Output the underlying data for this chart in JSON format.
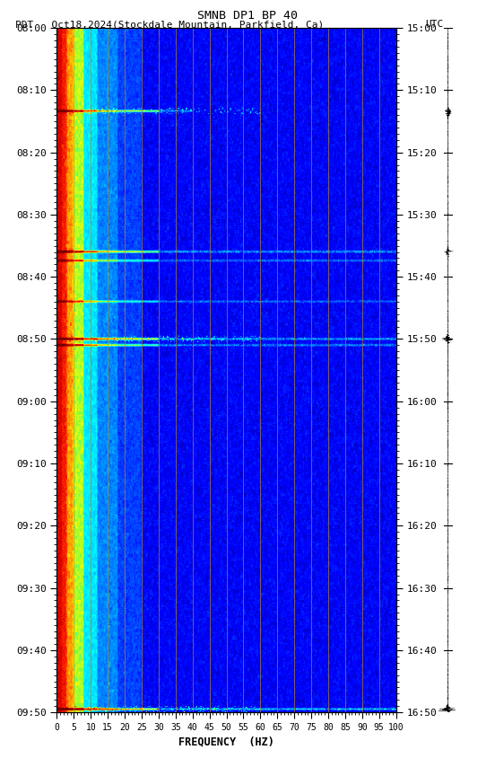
{
  "title_line1": "SMNB DP1 BP 40",
  "title_line2_left": "PDT   Oct18,2024(Stockdale Mountain, Parkfield, Ca)",
  "title_line2_right": "UTC",
  "xlabel": "FREQUENCY  (HZ)",
  "time_ticks_pdt": [
    "08:00",
    "08:10",
    "08:20",
    "08:30",
    "08:40",
    "08:50",
    "09:00",
    "09:10",
    "09:20",
    "09:30",
    "09:40",
    "09:50"
  ],
  "time_ticks_utc": [
    "15:00",
    "15:10",
    "15:20",
    "15:30",
    "15:40",
    "15:50",
    "16:00",
    "16:10",
    "16:20",
    "16:30",
    "16:40",
    "16:50"
  ],
  "freq_ticks": [
    0,
    5,
    10,
    15,
    20,
    25,
    30,
    35,
    40,
    45,
    50,
    55,
    60,
    65,
    70,
    75,
    80,
    85,
    90,
    95,
    100
  ],
  "freq_gridlines": [
    5,
    10,
    15,
    20,
    25,
    30,
    35,
    40,
    45,
    50,
    55,
    60,
    65,
    70,
    75,
    80,
    85,
    90,
    95,
    100
  ],
  "event_times_min": [
    13.5,
    36.0,
    37.5,
    44.0,
    50.0,
    51.0,
    109.5
  ],
  "event_strengths": [
    0.55,
    0.65,
    0.45,
    0.4,
    0.7,
    0.55,
    0.75
  ],
  "event_max_freqs": [
    40,
    100,
    100,
    100,
    100,
    100,
    100
  ]
}
